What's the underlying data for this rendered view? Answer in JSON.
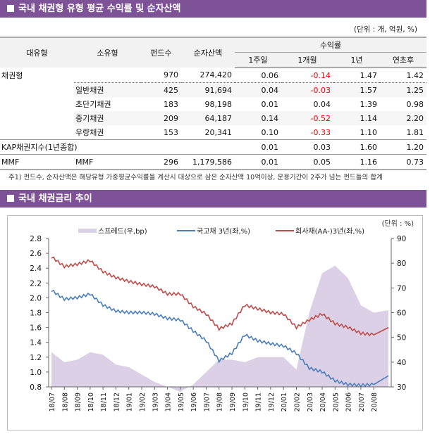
{
  "section1": {
    "title": "국내 채권형 유형 평균 수익률 및 순자산액",
    "unit": "(단위 : 개, 억원, %)",
    "headers": {
      "major": "대유형",
      "minor": "소유형",
      "funds": "펀드수",
      "nav": "순자산액",
      "return": "수익률",
      "w1": "1주일",
      "m1": "1개월",
      "y1": "1년",
      "ytd": "연초후"
    },
    "rows": [
      {
        "major": "채권형",
        "minor": "",
        "funds": "970",
        "nav": "274,420",
        "w1": "0.06",
        "m1": "-0.14",
        "y1": "1.47",
        "ytd": "1.42"
      },
      {
        "major": "",
        "minor": "일반채권",
        "funds": "425",
        "nav": "91,694",
        "w1": "0.04",
        "m1": "-0.03",
        "y1": "1.57",
        "ytd": "1.25"
      },
      {
        "major": "",
        "minor": "초단기채권",
        "funds": "183",
        "nav": "98,198",
        "w1": "0.01",
        "m1": "0.04",
        "y1": "1.39",
        "ytd": "0.98"
      },
      {
        "major": "",
        "minor": "중기채권",
        "funds": "209",
        "nav": "64,187",
        "w1": "0.14",
        "m1": "-0.52",
        "y1": "1.14",
        "ytd": "2.20"
      },
      {
        "major": "",
        "minor": "우량채권",
        "funds": "153",
        "nav": "20,341",
        "w1": "0.10",
        "m1": "-0.33",
        "y1": "1.10",
        "ytd": "1.81"
      },
      {
        "major": "KAP채권지수(1년종합)",
        "minor": "",
        "funds": "",
        "nav": "",
        "w1": "0.01",
        "m1": "0.03",
        "y1": "1.60",
        "ytd": "1.20"
      },
      {
        "major": "MMF",
        "minor": "MMF",
        "funds": "296",
        "nav": "1,179,586",
        "w1": "0.01",
        "m1": "0.05",
        "y1": "1.16",
        "ytd": "0.73"
      }
    ],
    "note": "주1) 펀드수, 순자산액은 해당유형 가중평균수익률을 계산시 대상으로 삼은 순자산액 10억이상, 운용기간이 2주가 넘는 펀드들의 합계",
    "negative_color": "#ee0000",
    "header_color": "#7e5296"
  },
  "section2": {
    "title": "국내 채권금리 추이",
    "unit": "(단위 : %)"
  },
  "chart_data": {
    "type": "line",
    "categories": [
      "18/07",
      "18/08",
      "18/09",
      "18/10",
      "18/11",
      "18/12",
      "19/01",
      "19/02",
      "19/03",
      "19/04",
      "19/05",
      "19/06",
      "19/07",
      "19/08",
      "19/09",
      "19/10",
      "19/11",
      "19/12",
      "20/01",
      "20/02",
      "20/03",
      "20/04",
      "20/05",
      "20/06",
      "20/07",
      "20/08"
    ],
    "y_left": {
      "min": 0.8,
      "max": 2.8,
      "ticks": [
        "0.8",
        "1.0",
        "1.2",
        "1.4",
        "1.6",
        "1.8",
        "2.0",
        "2.2",
        "2.4",
        "2.6",
        "2.8"
      ]
    },
    "y_right": {
      "min": 30,
      "max": 90,
      "ticks": [
        "30",
        "40",
        "50",
        "60",
        "70",
        "80",
        "90"
      ]
    },
    "legend_position": "top",
    "series": [
      {
        "name": "스프레드(우,bp)",
        "type": "area",
        "axis": "right",
        "color": "#dcd0e6",
        "values": [
          44,
          40,
          41,
          44,
          43,
          39,
          38,
          35,
          32,
          30,
          28,
          31,
          36,
          41,
          41,
          40,
          42,
          42,
          42,
          37,
          60,
          76,
          79,
          74,
          63,
          60
        ]
      },
      {
        "name": "국고채 3년(좌,%)",
        "type": "line",
        "axis": "left",
        "color": "#4a7ebb",
        "values": [
          2.1,
          1.98,
          2.0,
          2.05,
          1.9,
          1.82,
          1.8,
          1.8,
          1.78,
          1.72,
          1.7,
          1.55,
          1.42,
          1.15,
          1.25,
          1.5,
          1.42,
          1.38,
          1.35,
          1.25,
          1.05,
          1.0,
          0.88,
          0.83,
          0.82,
          0.83
        ]
      },
      {
        "name": "회사채(AA-)3년(좌,%)",
        "type": "line",
        "axis": "left",
        "color": "#be4b48",
        "values": [
          2.55,
          2.42,
          2.45,
          2.5,
          2.35,
          2.27,
          2.22,
          2.18,
          2.15,
          2.05,
          2.05,
          1.88,
          1.78,
          1.58,
          1.65,
          1.9,
          1.85,
          1.8,
          1.78,
          1.6,
          1.7,
          1.78,
          1.65,
          1.6,
          1.52,
          1.5
        ]
      }
    ]
  }
}
